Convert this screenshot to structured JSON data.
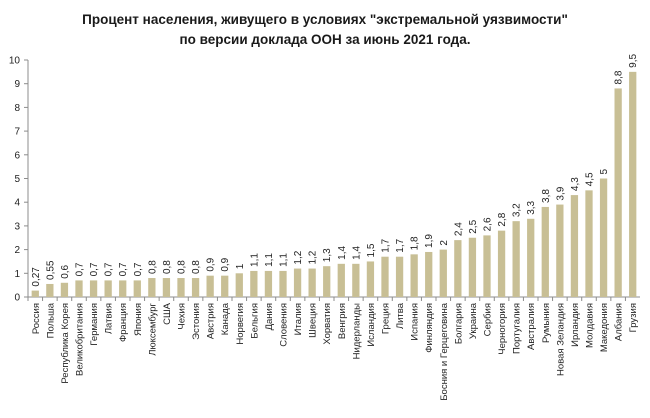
{
  "chart_data": {
    "type": "bar",
    "title_line1": "Процент населения, живущего в условиях \"экстремальной уязвимости\"",
    "title_line2": "по версии доклада ООН за июнь 2021 года.",
    "xlabel": "",
    "ylabel": "",
    "ylim": [
      0,
      10
    ],
    "yticks": [
      "0",
      "1",
      "2",
      "3",
      "4",
      "5",
      "6",
      "7",
      "8",
      "9",
      "10"
    ],
    "grid": false,
    "legend": "none",
    "bar_color": "#c8bf95",
    "categories": [
      "Россия",
      "Польша",
      "Республика Корея",
      "Великобритания",
      "Германия",
      "Латвия",
      "Франция",
      "Япония",
      "Люксембург",
      "США",
      "Чехия",
      "Эстония",
      "Австрия",
      "Канада",
      "Норвегия",
      "Бельгия",
      "Дания",
      "Словения",
      "Италия",
      "Швеция",
      "Хорватия",
      "Венгрия",
      "Нидерланды",
      "Исландия",
      "Греция",
      "Литва",
      "Испания",
      "Финляндия",
      "Босния и Герцеговина",
      "Болгария",
      "Украина",
      "Сербия",
      "Черногория",
      "Португалия",
      "Австралия",
      "Румыния",
      "Новая Зеландия",
      "Ирландия",
      "Молдавия",
      "Македония",
      "Албания",
      "Грузия"
    ],
    "values": [
      0.27,
      0.55,
      0.6,
      0.7,
      0.7,
      0.7,
      0.7,
      0.7,
      0.8,
      0.8,
      0.8,
      0.8,
      0.9,
      0.9,
      1,
      1.1,
      1.1,
      1.1,
      1.2,
      1.2,
      1.3,
      1.4,
      1.4,
      1.5,
      1.7,
      1.7,
      1.8,
      1.9,
      2,
      2.4,
      2.5,
      2.6,
      2.8,
      3.2,
      3.3,
      3.8,
      3.9,
      4.3,
      4.5,
      5,
      8.8,
      9.5
    ],
    "value_labels": [
      "0,27",
      "0,55",
      "0,6",
      "0,7",
      "0,7",
      "0,7",
      "0,7",
      "0,7",
      "0,8",
      "0,8",
      "0,8",
      "0,8",
      "0,9",
      "0,9",
      "1",
      "1,1",
      "1,1",
      "1,1",
      "1,2",
      "1,2",
      "1,3",
      "1,4",
      "1,4",
      "1,5",
      "1,7",
      "1,7",
      "1,8",
      "1,9",
      "2",
      "2,4",
      "2,5",
      "2,6",
      "2,8",
      "3,2",
      "3,3",
      "3,8",
      "3,9",
      "4,3",
      "4,5",
      "5",
      "8,8",
      "9,5"
    ]
  }
}
